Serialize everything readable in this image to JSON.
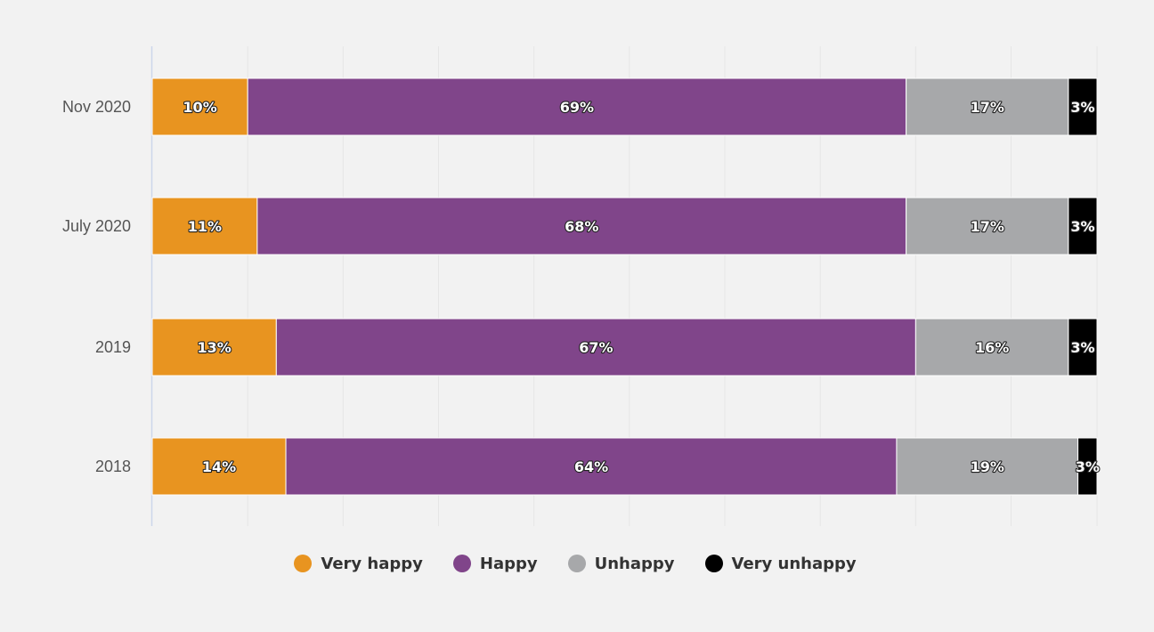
{
  "chart_data": {
    "type": "bar",
    "orientation": "horizontal",
    "stacked": true,
    "categories": [
      "Nov 2020",
      "July 2020",
      "2019",
      "2018"
    ],
    "series": [
      {
        "name": "Very happy",
        "color": "#e89420",
        "values": [
          10,
          11,
          13,
          14
        ],
        "labels": [
          "10%",
          "11%",
          "13%",
          "14%"
        ]
      },
      {
        "name": "Happy",
        "color": "#80458a",
        "values": [
          69,
          68,
          67,
          64
        ],
        "labels": [
          "69%",
          "68%",
          "67%",
          "64%"
        ]
      },
      {
        "name": "Unhappy",
        "color": "#a7a8aa",
        "values": [
          17,
          17,
          16,
          19
        ],
        "labels": [
          "17%",
          "17%",
          "16%",
          "19%"
        ]
      },
      {
        "name": "Very unhappy",
        "color": "#000000",
        "values": [
          3,
          3,
          3,
          3
        ],
        "labels": [
          "3%",
          "3%",
          "3%",
          "3%"
        ]
      }
    ],
    "xlim": [
      0,
      99
    ],
    "grid": true,
    "legend_position": "bottom-center",
    "axis_color": "#ccd6eb",
    "grid_color": "#e6e6e6"
  }
}
